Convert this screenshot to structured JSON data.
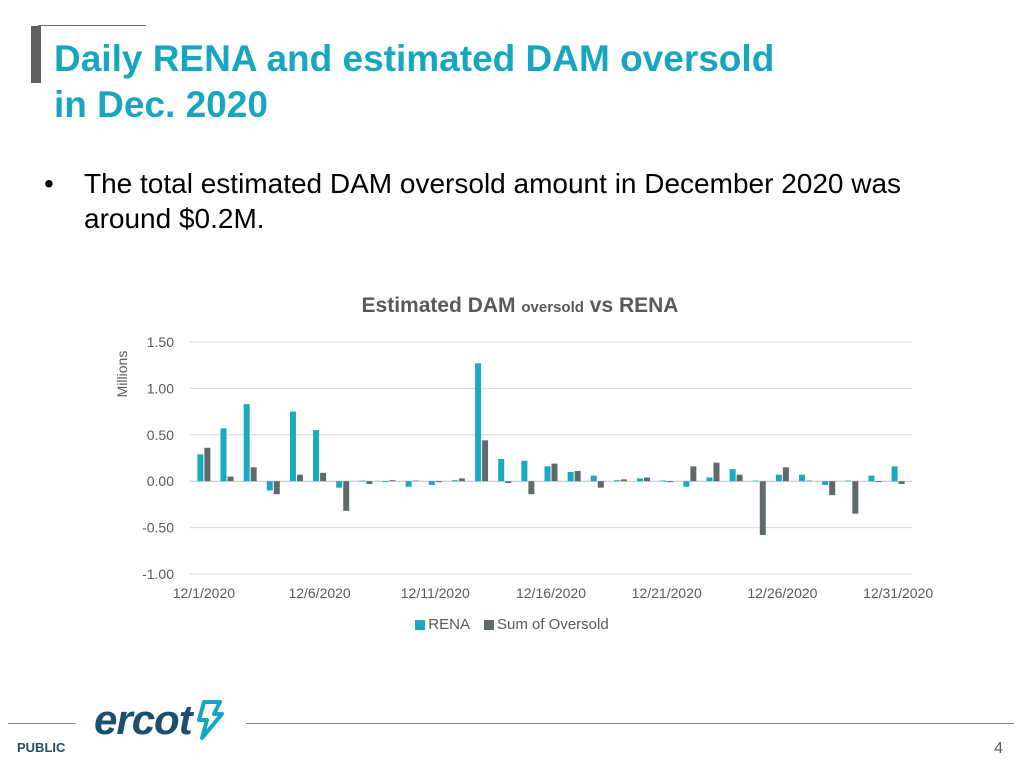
{
  "slide": {
    "title_line1": "Daily RENA and estimated DAM oversold",
    "title_line2": "in Dec. 2020",
    "bullet": "The total estimated DAM oversold amount in December 2020 was around $0.2M.",
    "bullet_glyph": "•",
    "logo_text": "ercot",
    "footer_label": "PUBLIC",
    "page_number": "4"
  },
  "colors": {
    "rena": "#1aa9bf",
    "oversold": "#5f6a6d",
    "title": "#16a6c0",
    "brand": "#1a4f6e"
  },
  "chart_data": {
    "type": "bar",
    "title_part1": "Estimated DAM",
    "title_part2": "oversold",
    "title_part3": "vs RENA",
    "ylabel": "Millions",
    "ylim": [
      -1.0,
      1.5
    ],
    "yticks": [
      1.5,
      1.0,
      0.5,
      0.0,
      -0.5,
      -1.0
    ],
    "ytick_labels": [
      "1.50",
      "1.00",
      "0.50",
      "0.00",
      "-0.50",
      "-1.00"
    ],
    "xtick_labels": [
      "12/1/2020",
      "12/6/2020",
      "12/11/2020",
      "12/16/2020",
      "12/21/2020",
      "12/26/2020",
      "12/31/2020"
    ],
    "xtick_indices": [
      0,
      5,
      10,
      15,
      20,
      25,
      30
    ],
    "grid": true,
    "legend_position": "bottom",
    "categories": [
      "12/1",
      "12/2",
      "12/3",
      "12/4",
      "12/5",
      "12/6",
      "12/7",
      "12/8",
      "12/9",
      "12/10",
      "12/11",
      "12/12",
      "12/13",
      "12/14",
      "12/15",
      "12/16",
      "12/17",
      "12/18",
      "12/19",
      "12/20",
      "12/21",
      "12/22",
      "12/23",
      "12/24",
      "12/25",
      "12/26",
      "12/27",
      "12/28",
      "12/29",
      "12/30",
      "12/31"
    ],
    "series": [
      {
        "name": "RENA",
        "values": [
          0.29,
          0.57,
          0.83,
          -0.1,
          0.75,
          0.55,
          -0.07,
          0.0,
          -0.01,
          -0.06,
          -0.04,
          0.01,
          1.27,
          0.24,
          0.22,
          0.16,
          0.1,
          0.06,
          0.01,
          0.03,
          0.0,
          -0.06,
          0.04,
          0.13,
          0.0,
          0.07,
          0.07,
          -0.04,
          0.0,
          0.06,
          0.16
        ]
      },
      {
        "name": "Sum of Oversold",
        "values": [
          0.36,
          0.05,
          0.15,
          -0.14,
          0.07,
          0.09,
          -0.32,
          -0.03,
          0.01,
          0.0,
          -0.01,
          0.03,
          0.44,
          -0.02,
          -0.14,
          0.19,
          0.11,
          -0.07,
          0.02,
          0.04,
          -0.01,
          0.16,
          0.2,
          0.07,
          -0.58,
          0.15,
          0.0,
          -0.15,
          -0.35,
          -0.01,
          -0.03
        ]
      }
    ]
  }
}
